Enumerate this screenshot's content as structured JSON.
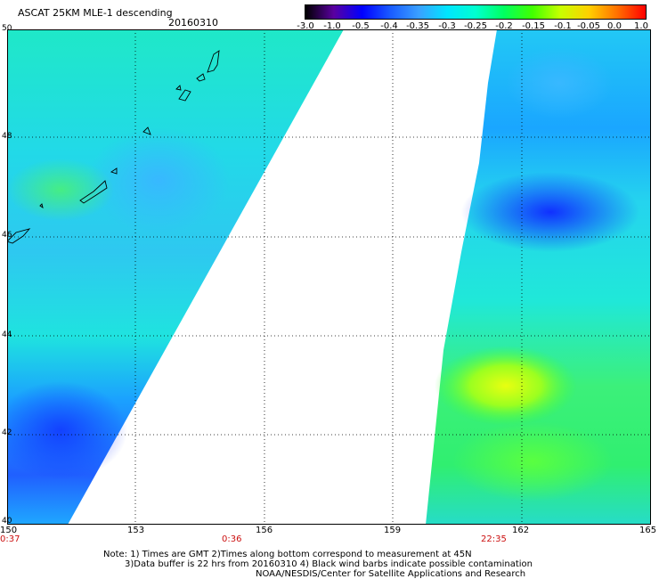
{
  "header": {
    "title": "ASCAT 25KM MLE-1 descending",
    "date": "20160310"
  },
  "colorbar": {
    "labels": [
      "-3.0",
      "-1.0",
      "-0.5",
      "-0.4",
      "-0.35",
      "-0.3",
      "-0.25",
      "-0.2",
      "-0.15",
      "-0.1",
      "-0.05",
      "0.0",
      "1.0"
    ],
    "colors": [
      "#000000",
      "#5a00a0",
      "#0000ff",
      "#1a5cff",
      "#3aa0ff",
      "#00e5ff",
      "#00ffd0",
      "#00ff60",
      "#40ff00",
      "#c8ff00",
      "#ffd000",
      "#ff7000",
      "#ff0000"
    ]
  },
  "map": {
    "lat_labels": [
      "50",
      "48",
      "46",
      "44",
      "42",
      "40"
    ],
    "lon_labels": [
      "150",
      "153",
      "156",
      "159",
      "162",
      "165"
    ],
    "time_labels": [
      "0:37",
      "0:36",
      "22:35"
    ],
    "lat_range": [
      40,
      50
    ],
    "lon_range": [
      150,
      165
    ]
  },
  "notes": {
    "line1": "Note: 1) Times are GMT 2)Times along bottom correspond to measurement at 45N",
    "line2": "3)Data buffer is 22 hrs from 20160310 4) Black wind barbs indicate possible contamination",
    "line3": "NOAA/NESDIS/Center for Satellite Applications and Research"
  }
}
